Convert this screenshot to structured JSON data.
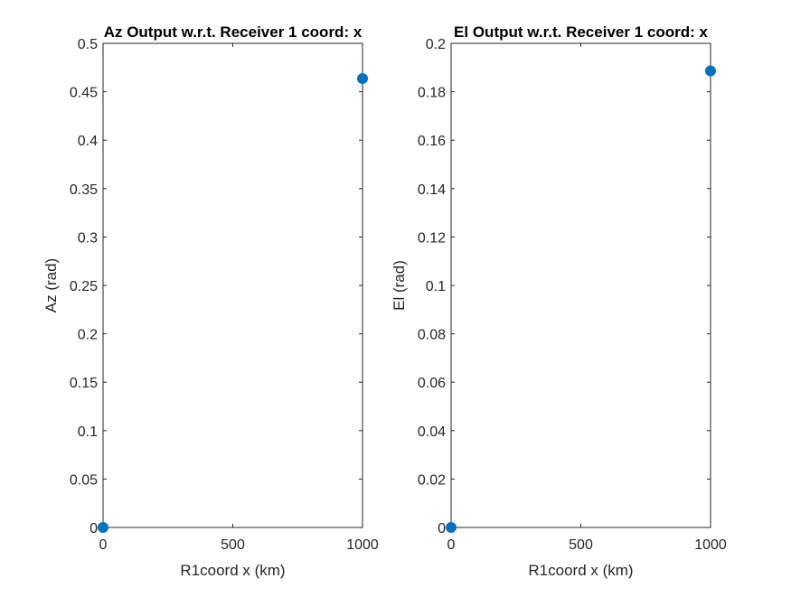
{
  "chart_data": [
    {
      "type": "scatter",
      "title": "Az Output w.r.t. Receiver 1 coord: x",
      "xlabel": "R1coord x (km)",
      "ylabel": "Az (rad)",
      "xlim": [
        0,
        1000
      ],
      "ylim": [
        0,
        0.5
      ],
      "xticks": [
        0,
        500,
        1000
      ],
      "xtick_labels": [
        "0",
        "500",
        "1000"
      ],
      "yticks": [
        0,
        0.05,
        0.1,
        0.15,
        0.2,
        0.25,
        0.3,
        0.35,
        0.4,
        0.45,
        0.5
      ],
      "ytick_labels": [
        "0",
        "0.05",
        "0.1",
        "0.15",
        "0.2",
        "0.25",
        "0.3",
        "0.35",
        "0.4",
        "0.45",
        "0.5"
      ],
      "grid": false,
      "series": [
        {
          "x": [
            0,
            1000
          ],
          "y": [
            0,
            0.4636
          ],
          "color": "#0072BD"
        }
      ]
    },
    {
      "type": "scatter",
      "title": "El Output w.r.t. Receiver 1 coord: x",
      "xlabel": "R1coord x (km)",
      "ylabel": "El (rad)",
      "xlim": [
        0,
        1000
      ],
      "ylim": [
        0,
        0.2
      ],
      "xticks": [
        0,
        500,
        1000
      ],
      "xtick_labels": [
        "0",
        "500",
        "1000"
      ],
      "yticks": [
        0,
        0.02,
        0.04,
        0.06,
        0.08,
        0.1,
        0.12,
        0.14,
        0.16,
        0.18,
        0.2
      ],
      "ytick_labels": [
        "0",
        "0.02",
        "0.04",
        "0.06",
        "0.08",
        "0.1",
        "0.12",
        "0.14",
        "0.16",
        "0.18",
        "0.2"
      ],
      "grid": false,
      "series": [
        {
          "x": [
            0,
            1000
          ],
          "y": [
            0,
            0.1886
          ],
          "color": "#0072BD"
        }
      ]
    }
  ]
}
